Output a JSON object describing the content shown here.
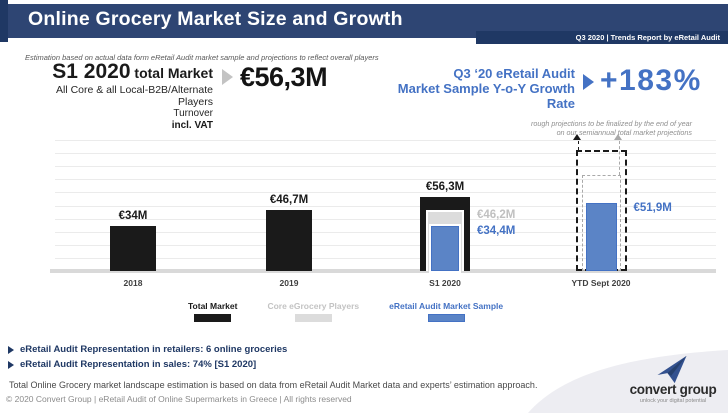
{
  "header": {
    "title": "Online Grocery Market Size and Growth",
    "ribbon": "Q3 2020 | Trends Report by eRetail Audit"
  },
  "subtitle": "Estimation based on actual data form eRetail Audit market sample  and projections to reflect overall players",
  "kpi_left": {
    "title_main": "S1 2020",
    "title_suffix": " total Market",
    "line2": "All Core & all Local-B2B/Alternate Players",
    "line3": "Turnover",
    "line4": "incl. VAT",
    "value": "€56,3M"
  },
  "kpi_right": {
    "line1": "Q3 ‘20 eRetail Audit",
    "line2": "Market Sample Y-o-Y Growth Rate",
    "value": "+183%"
  },
  "projection_note": {
    "line1": "rough projections to be finalized by the end of year",
    "line2": "on our semiannual total market projections"
  },
  "chart_data": {
    "type": "bar",
    "unit": "€M",
    "title": "",
    "xlabel": "",
    "ylabel": "",
    "ylim": [
      0,
      100
    ],
    "gridline_step": 10,
    "grid": true,
    "y_axis_tick_labels_shown": false,
    "legend_position": "bottom",
    "categories": [
      "2018",
      "2019",
      "S1 2020",
      "YTD Sept 2020"
    ],
    "series": [
      {
        "name": "Total Market",
        "color": "#1a1a1a",
        "values": [
          34,
          46.7,
          56.3,
          null
        ]
      },
      {
        "name": "Core eGrocery Players",
        "color": "#dcdcdc",
        "values": [
          null,
          null,
          46.2,
          null
        ]
      },
      {
        "name": "eRetail Audit Market Sample",
        "color": "#5b84c6",
        "values": [
          null,
          null,
          34.4,
          51.9
        ]
      }
    ],
    "data_labels": [
      {
        "category": "2018",
        "series": "Total Market",
        "text": "€34M",
        "pos": "top",
        "color": "#1a1a1a"
      },
      {
        "category": "2019",
        "series": "Total Market",
        "text": "€46,7M",
        "pos": "top",
        "color": "#1a1a1a"
      },
      {
        "category": "S1 2020",
        "series": "Total Market",
        "text": "€56,3M",
        "pos": "top",
        "color": "#1a1a1a"
      },
      {
        "category": "S1 2020",
        "series": "Core eGrocery Players",
        "text": "€46,2M",
        "pos": "right",
        "color": "#c0c0c0"
      },
      {
        "category": "S1 2020",
        "series": "eRetail Audit Market Sample",
        "text": "€34,4M",
        "pos": "right",
        "color": "#4472c4"
      },
      {
        "category": "YTD Sept 2020",
        "series": "eRetail Audit Market Sample",
        "text": "€51,9M",
        "pos": "right",
        "color": "#4472c4"
      }
    ],
    "projections": [
      {
        "category": "YTD Sept 2020",
        "series": "Total Market",
        "approx_value": 92,
        "style": "dashed-outline",
        "arrow": "up",
        "labeled": false
      },
      {
        "category": "YTD Sept 2020",
        "series": "Core eGrocery Players",
        "approx_value": 73,
        "style": "dashed-outline",
        "arrow": "up",
        "labeled": false
      }
    ]
  },
  "legend": [
    {
      "label": "Total Market",
      "text_color": "#1a1a1a",
      "swatch_color": "#1a1a1a",
      "swatch_border": "#1a1a1a"
    },
    {
      "label": "Core eGrocery Players",
      "text_color": "#c3c3c3",
      "swatch_color": "#dcdcdc",
      "swatch_border": "#dcdcdc"
    },
    {
      "label": "eRetail Audit Market Sample",
      "text_color": "#4472c4",
      "swatch_color": "#5b84c6",
      "swatch_border": "#4472c4"
    }
  ],
  "bullets": [
    "eRetail Audit Representation in retailers: 6 online groceries",
    "eRetail Audit Representation in sales: 74% [S1 2020]"
  ],
  "footer": {
    "line1": "Total Online Grocery market landscape estimation is based on data from eRetail Audit Market data and experts’ estimation approach.",
    "line2": "© 2020 Convert Group | eRetail Audit of Online Supermarkets in Greece | All rights reserved"
  },
  "logo": {
    "name": "convert group",
    "tagline": "unlock your digital potential"
  },
  "colors": {
    "header_navy": "#2e4573",
    "dark_navy": "#1f3864",
    "accent_blue": "#4472c4",
    "bar_blue": "#5b84c6",
    "bar_gray": "#dcdcdc",
    "bar_black": "#1a1a1a",
    "gray_value_label": "#c0c0c0",
    "baseline_gray": "#d9d9d9"
  }
}
